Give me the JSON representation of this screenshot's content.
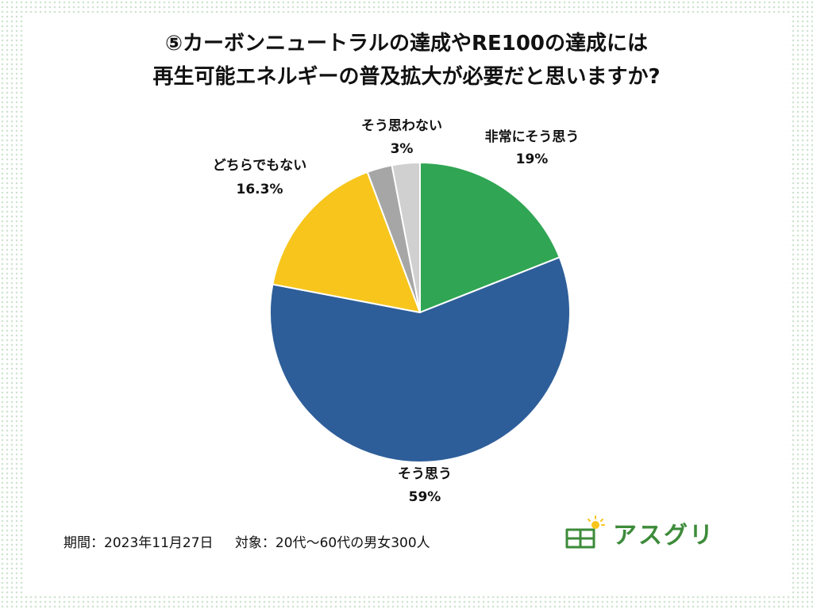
{
  "title": {
    "line1": "⑤カーボンニュートラルの達成やRE100の達成には",
    "line2": "再生可能エネルギーの普及拡大が必要だと思いますか?"
  },
  "chart_data": {
    "type": "pie",
    "title": "⑤カーボンニュートラルの達成やRE100の達成には再生可能エネルギーの普及拡大が必要だと思いますか?",
    "start_angle": "12 o'clock, clockwise",
    "slices": [
      {
        "label": "非常にそう思う",
        "value": 19,
        "value_label": "19%",
        "color": "#30a553"
      },
      {
        "label": "そう思う",
        "value": 59,
        "value_label": "59%",
        "color": "#2e5e99"
      },
      {
        "label": "どちらでもない",
        "value": 16.3,
        "value_label": "16.3%",
        "color": "#f7c51c"
      },
      {
        "label": "",
        "value": 2.7,
        "value_label": "",
        "color": "#a6a6a6"
      },
      {
        "label": "そう思わない",
        "value": 3,
        "value_label": "3%",
        "color": "#d0d0d0"
      }
    ]
  },
  "footer": {
    "period": "期間：2023年11月27日",
    "target": "対象：20代〜60代の男女300人"
  },
  "logo": {
    "text": "アスグリ",
    "color": "#3d8b3a"
  }
}
